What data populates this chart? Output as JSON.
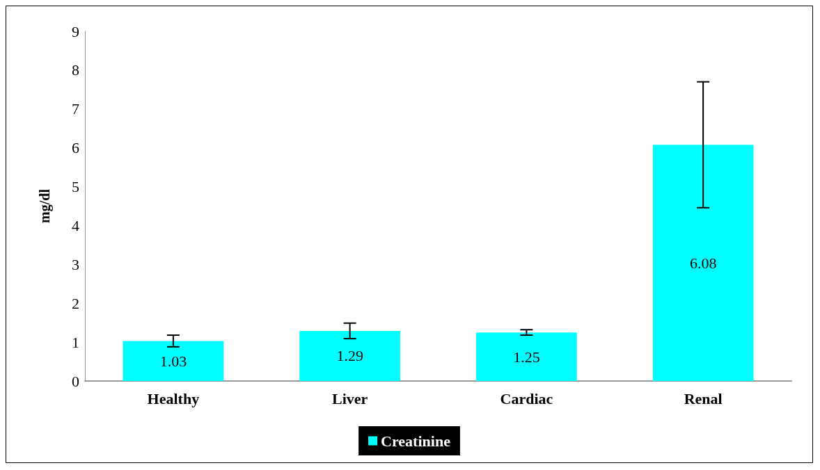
{
  "chart_data": {
    "type": "bar",
    "ylabel": "mg/dl",
    "categories": [
      "Healthy",
      "Liver",
      "Cardiac",
      "Renal"
    ],
    "series": [
      {
        "name": "Creatinine",
        "color": "#00ffff",
        "values": [
          1.03,
          1.29,
          1.25,
          6.08
        ],
        "errors": [
          0.15,
          0.2,
          0.07,
          1.62
        ]
      }
    ],
    "ylim": [
      0,
      9
    ],
    "yticks": [
      0,
      1,
      2,
      3,
      4,
      5,
      6,
      7,
      8,
      9
    ],
    "grid": false,
    "legend": "bottom",
    "data_labels": true
  }
}
